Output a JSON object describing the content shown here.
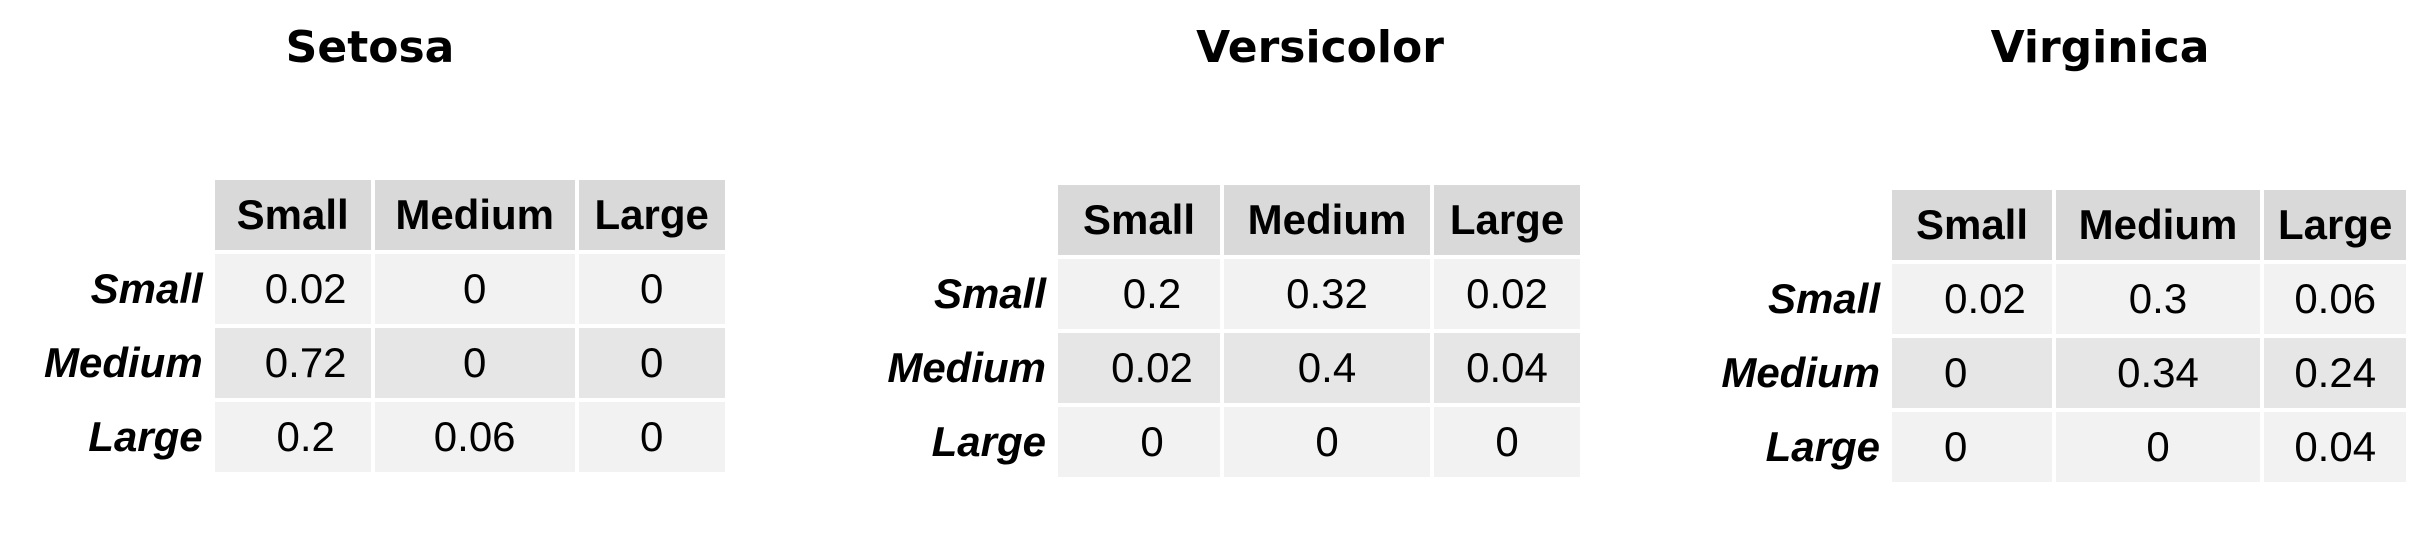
{
  "chart_data": [
    {
      "type": "table",
      "title": "Setosa",
      "columns": [
        "Small",
        "Medium",
        "Large"
      ],
      "rows": [
        {
          "label": "Small",
          "values": [
            "0.02",
            "0",
            "0"
          ]
        },
        {
          "label": "Medium",
          "values": [
            "0.72",
            "0",
            "0"
          ]
        },
        {
          "label": "Large",
          "values": [
            "0.2",
            "0.06",
            "0"
          ]
        }
      ]
    },
    {
      "type": "table",
      "title": "Versicolor",
      "columns": [
        "Small",
        "Medium",
        "Large"
      ],
      "rows": [
        {
          "label": "Small",
          "values": [
            "0.2",
            "0.32",
            "0.02"
          ]
        },
        {
          "label": "Medium",
          "values": [
            "0.02",
            "0.4",
            "0.04"
          ]
        },
        {
          "label": "Large",
          "values": [
            "0",
            "0",
            "0"
          ]
        }
      ]
    },
    {
      "type": "table",
      "title": "Virginica",
      "columns": [
        "Small",
        "Medium",
        "Large"
      ],
      "rows": [
        {
          "label": "Small",
          "values": [
            "0.02",
            "0.3",
            "0.06"
          ]
        },
        {
          "label": "Medium",
          "values": [
            "0",
            "0.34",
            "0.24"
          ]
        },
        {
          "label": "Large",
          "values": [
            "0",
            "0",
            "0.04"
          ]
        }
      ]
    }
  ]
}
